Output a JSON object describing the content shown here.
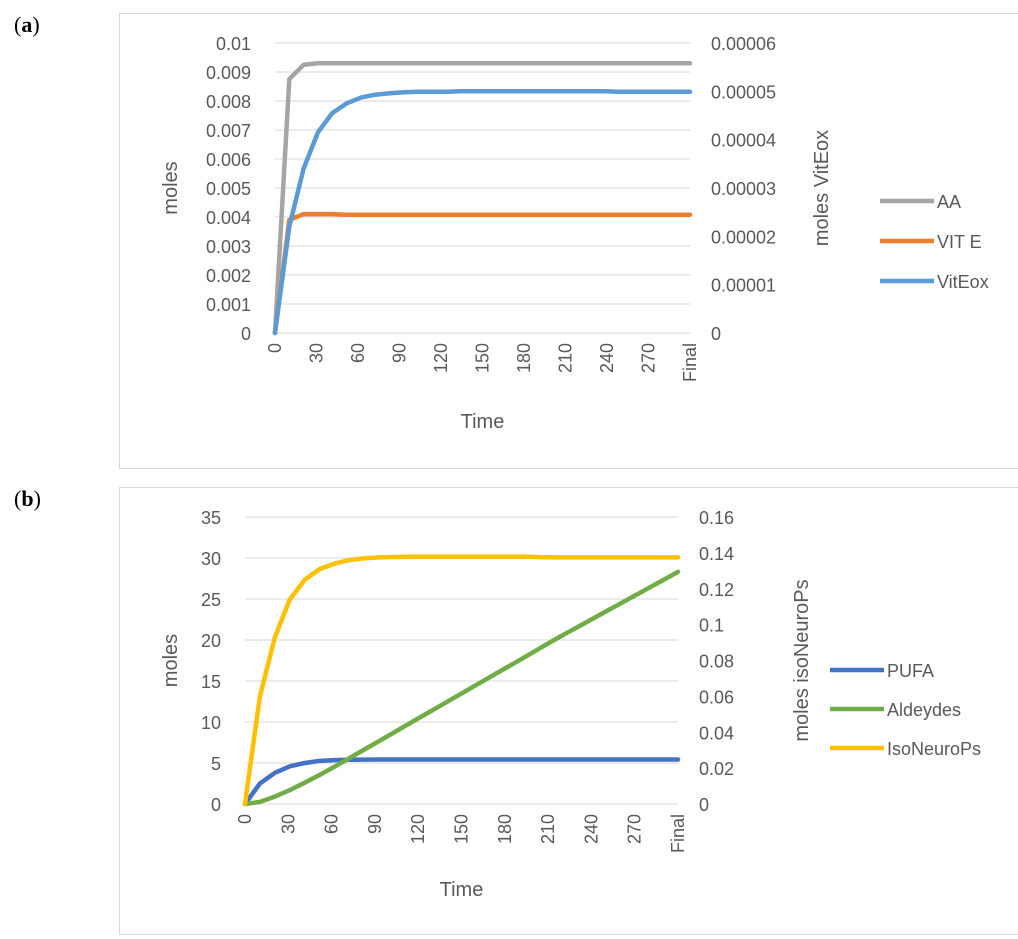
{
  "panels": [
    {
      "label_open": "(",
      "label_letter": "a",
      "label_close": ")"
    },
    {
      "label_open": "(",
      "label_letter": "b",
      "label_close": ")"
    }
  ],
  "chart_data": [
    {
      "type": "line",
      "title": "",
      "xlabel": "Time",
      "ylabel": "moles",
      "y2label": "moles VitEox",
      "x_tick_labels": [
        "0",
        "30",
        "60",
        "90",
        "120",
        "150",
        "180",
        "210",
        "240",
        "270",
        "Final"
      ],
      "ylim": [
        0,
        0.01
      ],
      "y_ticks": [
        "0",
        "0.001",
        "0.002",
        "0.003",
        "0.004",
        "0.005",
        "0.006",
        "0.007",
        "0.008",
        "0.009",
        "0.01"
      ],
      "y2lim": [
        0,
        6e-05
      ],
      "y2_ticks": [
        "0",
        "0.00001",
        "0.00002",
        "0.00003",
        "0.00004",
        "0.00005",
        "0.00006"
      ],
      "legend_position": "right",
      "grid": true,
      "x": [
        0,
        10,
        20,
        30,
        40,
        50,
        60,
        70,
        80,
        90,
        100,
        110,
        120,
        130,
        140,
        150,
        160,
        170,
        180,
        190,
        200,
        210,
        220,
        230,
        240,
        250,
        260,
        270,
        280,
        290
      ],
      "series": [
        {
          "name": "AA",
          "axis": "left",
          "color": "#a5a5a5",
          "values": [
            0,
            0.00875,
            0.00925,
            0.0093,
            0.0093,
            0.0093,
            0.0093,
            0.0093,
            0.0093,
            0.0093,
            0.0093,
            0.0093,
            0.0093,
            0.0093,
            0.0093,
            0.0093,
            0.0093,
            0.0093,
            0.0093,
            0.0093,
            0.0093,
            0.0093,
            0.0093,
            0.0093,
            0.0093,
            0.0093,
            0.0093,
            0.0093,
            0.0093,
            0.0093
          ]
        },
        {
          "name": "VIT E",
          "axis": "left",
          "color": "#ed7d31",
          "values": [
            0,
            0.0039,
            0.0041,
            0.0041,
            0.0041,
            0.00408,
            0.00408,
            0.00408,
            0.00408,
            0.00408,
            0.00408,
            0.00408,
            0.00408,
            0.00408,
            0.00408,
            0.00408,
            0.00408,
            0.00408,
            0.00408,
            0.00408,
            0.00408,
            0.00408,
            0.00408,
            0.00408,
            0.00408,
            0.00408,
            0.00408,
            0.00408,
            0.00408,
            0.00408
          ]
        },
        {
          "name": "VitEox",
          "axis": "right",
          "color": "#5b9bd5",
          "values": [
            0,
            2.2e-05,
            3.4e-05,
            4.15e-05,
            4.55e-05,
            4.75e-05,
            4.87e-05,
            4.93e-05,
            4.96e-05,
            4.98e-05,
            4.99e-05,
            4.99e-05,
            4.99e-05,
            5e-05,
            5e-05,
            5e-05,
            5e-05,
            5e-05,
            5e-05,
            5e-05,
            5e-05,
            5e-05,
            5e-05,
            5e-05,
            4.99e-05,
            4.99e-05,
            4.99e-05,
            4.99e-05,
            4.99e-05,
            4.99e-05
          ]
        }
      ]
    },
    {
      "type": "line",
      "title": "",
      "xlabel": "Time",
      "ylabel": "moles",
      "y2label": "moles isoNeuroPs",
      "x_tick_labels": [
        "0",
        "30",
        "60",
        "90",
        "120",
        "150",
        "180",
        "210",
        "240",
        "270",
        "Final"
      ],
      "ylim": [
        0,
        35
      ],
      "y_ticks": [
        "0",
        "5",
        "10",
        "15",
        "20",
        "25",
        "30",
        "35"
      ],
      "y2lim": [
        0,
        0.16
      ],
      "y2_ticks": [
        "0",
        "0.02",
        "0.04",
        "0.06",
        "0.08",
        "0.1",
        "0.12",
        "0.14",
        "0.16"
      ],
      "legend_position": "right",
      "grid": true,
      "x": [
        0,
        10,
        20,
        30,
        40,
        50,
        60,
        70,
        80,
        90,
        100,
        110,
        120,
        130,
        140,
        150,
        160,
        170,
        180,
        190,
        200,
        210,
        220,
        230,
        240,
        250,
        260,
        270,
        280,
        290
      ],
      "series": [
        {
          "name": "PUFA",
          "axis": "left",
          "color": "#4472c4",
          "values": [
            0,
            2.5,
            3.8,
            4.6,
            5.0,
            5.25,
            5.35,
            5.4,
            5.42,
            5.43,
            5.43,
            5.43,
            5.43,
            5.43,
            5.43,
            5.43,
            5.43,
            5.43,
            5.43,
            5.43,
            5.43,
            5.43,
            5.43,
            5.43,
            5.43,
            5.43,
            5.43,
            5.43,
            5.43,
            5.43
          ]
        },
        {
          "name": "Aldeydes",
          "axis": "left",
          "color": "#70ad47",
          "values": [
            0,
            0.25,
            0.9,
            1.7,
            2.6,
            3.55,
            4.55,
            5.6,
            6.65,
            7.7,
            8.75,
            9.8,
            10.85,
            11.9,
            12.95,
            14.0,
            15.05,
            16.1,
            17.15,
            18.2,
            19.25,
            20.3,
            21.3,
            22.3,
            23.3,
            24.3,
            25.3,
            26.3,
            27.3,
            28.3
          ]
        },
        {
          "name": "IsoNeuroPs",
          "axis": "right",
          "color": "#ffc000",
          "values": [
            0,
            0.06,
            0.093,
            0.114,
            0.125,
            0.131,
            0.134,
            0.136,
            0.137,
            0.1375,
            0.1377,
            0.1378,
            0.1378,
            0.1378,
            0.1378,
            0.1378,
            0.1378,
            0.1378,
            0.1378,
            0.1378,
            0.1376,
            0.1375,
            0.1375,
            0.1375,
            0.1375,
            0.1375,
            0.1375,
            0.1375,
            0.1375,
            0.1375
          ]
        }
      ]
    }
  ]
}
